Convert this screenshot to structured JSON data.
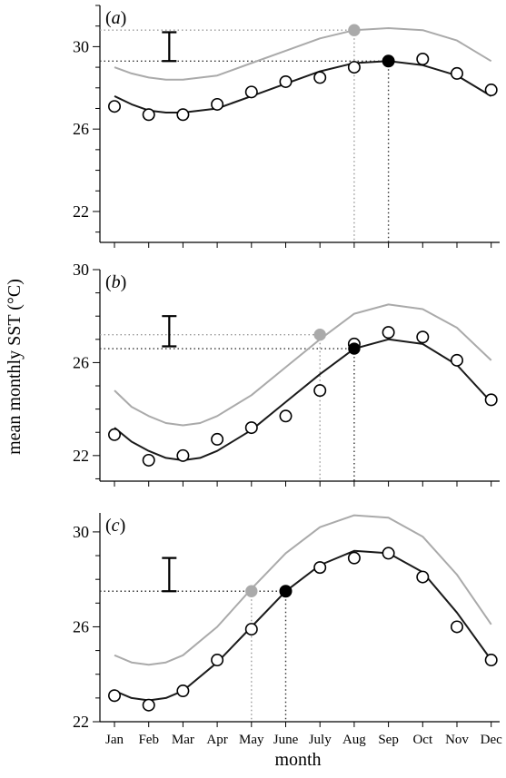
{
  "ylabel": "mean monthly SST (°C)",
  "xlabel": "month",
  "months": [
    "Jan",
    "Feb",
    "Mar",
    "Apr",
    "May",
    "June",
    "July",
    "Aug",
    "Sep",
    "Oct",
    "Nov",
    "Dec"
  ],
  "colors": {
    "observed": "#000000",
    "fit": "#1a1a1a",
    "shifted": "#aaaaaa",
    "guide": "#777777"
  },
  "chart_data": [
    {
      "type": "scatter",
      "panel_label_open": "(",
      "panel_label_letter": "a",
      "panel_label_close": ")",
      "ylim": [
        20.5,
        32
      ],
      "yticks": [
        22,
        26,
        30
      ],
      "observed": [
        27.1,
        26.7,
        26.7,
        27.2,
        27.8,
        28.3,
        28.5,
        29.0,
        29.3,
        29.4,
        28.7,
        27.9
      ],
      "fit_curve": [
        {
          "month": 1.0,
          "value": 27.6
        },
        {
          "month": 1.5,
          "value": 27.2
        },
        {
          "month": 2.0,
          "value": 26.9
        },
        {
          "month": 2.5,
          "value": 26.8
        },
        {
          "month": 3.0,
          "value": 26.8
        },
        {
          "month": 4.0,
          "value": 27.0
        },
        {
          "month": 5.0,
          "value": 27.6
        },
        {
          "month": 6.0,
          "value": 28.2
        },
        {
          "month": 7.0,
          "value": 28.8
        },
        {
          "month": 8.0,
          "value": 29.2
        },
        {
          "month": 9.0,
          "value": 29.3
        },
        {
          "month": 10.0,
          "value": 29.1
        },
        {
          "month": 11.0,
          "value": 28.6
        },
        {
          "month": 12.0,
          "value": 27.6
        }
      ],
      "shifted_curve": [
        {
          "month": 1.0,
          "value": 29.0
        },
        {
          "month": 1.5,
          "value": 28.7
        },
        {
          "month": 2.0,
          "value": 28.5
        },
        {
          "month": 2.5,
          "value": 28.4
        },
        {
          "month": 3.0,
          "value": 28.4
        },
        {
          "month": 4.0,
          "value": 28.6
        },
        {
          "month": 5.0,
          "value": 29.2
        },
        {
          "month": 6.0,
          "value": 29.8
        },
        {
          "month": 7.0,
          "value": 30.4
        },
        {
          "month": 8.0,
          "value": 30.8
        },
        {
          "month": 9.0,
          "value": 30.9
        },
        {
          "month": 10.0,
          "value": 30.8
        },
        {
          "month": 11.0,
          "value": 30.3
        },
        {
          "month": 12.0,
          "value": 29.3
        }
      ],
      "peak_fit": {
        "month": 9.0,
        "value": 29.3
      },
      "peak_shifted": {
        "month": 8.0,
        "value": 30.8
      },
      "error_bar": {
        "month": 2.6,
        "low": 29.3,
        "high": 30.7
      }
    },
    {
      "type": "scatter",
      "panel_label_open": "(",
      "panel_label_letter": "b",
      "panel_label_close": ")",
      "ylim": [
        20.9,
        30.0
      ],
      "yticks": [
        22,
        26,
        30
      ],
      "observed": [
        22.9,
        21.8,
        22.0,
        22.7,
        23.2,
        23.7,
        24.8,
        26.8,
        27.3,
        27.1,
        26.1,
        24.4
      ],
      "fit_curve": [
        {
          "month": 1.0,
          "value": 23.2
        },
        {
          "month": 1.5,
          "value": 22.6
        },
        {
          "month": 2.0,
          "value": 22.2
        },
        {
          "month": 2.5,
          "value": 21.9
        },
        {
          "month": 3.0,
          "value": 21.8
        },
        {
          "month": 3.5,
          "value": 21.9
        },
        {
          "month": 4.0,
          "value": 22.2
        },
        {
          "month": 5.0,
          "value": 23.1
        },
        {
          "month": 6.0,
          "value": 24.3
        },
        {
          "month": 7.0,
          "value": 25.5
        },
        {
          "month": 8.0,
          "value": 26.6
        },
        {
          "month": 9.0,
          "value": 27.0
        },
        {
          "month": 10.0,
          "value": 26.8
        },
        {
          "month": 11.0,
          "value": 25.9
        },
        {
          "month": 12.0,
          "value": 24.3
        }
      ],
      "shifted_curve": [
        {
          "month": 1.0,
          "value": 24.8
        },
        {
          "month": 1.5,
          "value": 24.1
        },
        {
          "month": 2.0,
          "value": 23.7
        },
        {
          "month": 2.5,
          "value": 23.4
        },
        {
          "month": 3.0,
          "value": 23.3
        },
        {
          "month": 3.5,
          "value": 23.4
        },
        {
          "month": 4.0,
          "value": 23.7
        },
        {
          "month": 5.0,
          "value": 24.6
        },
        {
          "month": 6.0,
          "value": 25.8
        },
        {
          "month": 7.0,
          "value": 27.0
        },
        {
          "month": 8.0,
          "value": 28.1
        },
        {
          "month": 9.0,
          "value": 28.5
        },
        {
          "month": 10.0,
          "value": 28.3
        },
        {
          "month": 11.0,
          "value": 27.5
        },
        {
          "month": 12.0,
          "value": 26.1
        }
      ],
      "peak_fit": {
        "month": 8.0,
        "value": 26.6
      },
      "peak_shifted": {
        "month": 7.0,
        "value": 27.2
      },
      "error_bar": {
        "month": 2.6,
        "low": 26.7,
        "high": 28.0
      }
    },
    {
      "type": "scatter",
      "panel_label_open": "(",
      "panel_label_letter": "c",
      "panel_label_close": ")",
      "ylim": [
        22.0,
        30.8
      ],
      "yticks": [
        22,
        26,
        30
      ],
      "observed": [
        23.1,
        22.7,
        23.3,
        24.6,
        25.9,
        27.5,
        28.5,
        28.9,
        29.1,
        28.1,
        26.0,
        24.6
      ],
      "fit_curve": [
        {
          "month": 1.0,
          "value": 23.3
        },
        {
          "month": 1.5,
          "value": 23.0
        },
        {
          "month": 2.0,
          "value": 22.9
        },
        {
          "month": 2.5,
          "value": 23.0
        },
        {
          "month": 3.0,
          "value": 23.3
        },
        {
          "month": 4.0,
          "value": 24.5
        },
        {
          "month": 5.0,
          "value": 26.0
        },
        {
          "month": 6.0,
          "value": 27.5
        },
        {
          "month": 7.0,
          "value": 28.6
        },
        {
          "month": 8.0,
          "value": 29.2
        },
        {
          "month": 9.0,
          "value": 29.1
        },
        {
          "month": 10.0,
          "value": 28.3
        },
        {
          "month": 11.0,
          "value": 26.6
        },
        {
          "month": 12.0,
          "value": 24.6
        }
      ],
      "shifted_curve": [
        {
          "month": 1.0,
          "value": 24.8
        },
        {
          "month": 1.5,
          "value": 24.5
        },
        {
          "month": 2.0,
          "value": 24.4
        },
        {
          "month": 2.5,
          "value": 24.5
        },
        {
          "month": 3.0,
          "value": 24.8
        },
        {
          "month": 4.0,
          "value": 26.0
        },
        {
          "month": 5.0,
          "value": 27.6
        },
        {
          "month": 6.0,
          "value": 29.1
        },
        {
          "month": 7.0,
          "value": 30.2
        },
        {
          "month": 8.0,
          "value": 30.7
        },
        {
          "month": 9.0,
          "value": 30.6
        },
        {
          "month": 10.0,
          "value": 29.8
        },
        {
          "month": 11.0,
          "value": 28.2
        },
        {
          "month": 12.0,
          "value": 26.1
        }
      ],
      "peak_fit": {
        "month": 6.0,
        "value": 27.5
      },
      "peak_shifted": {
        "month": 5.0,
        "value": 27.5
      },
      "error_bar": {
        "month": 2.6,
        "low": 27.5,
        "high": 28.9
      }
    }
  ]
}
